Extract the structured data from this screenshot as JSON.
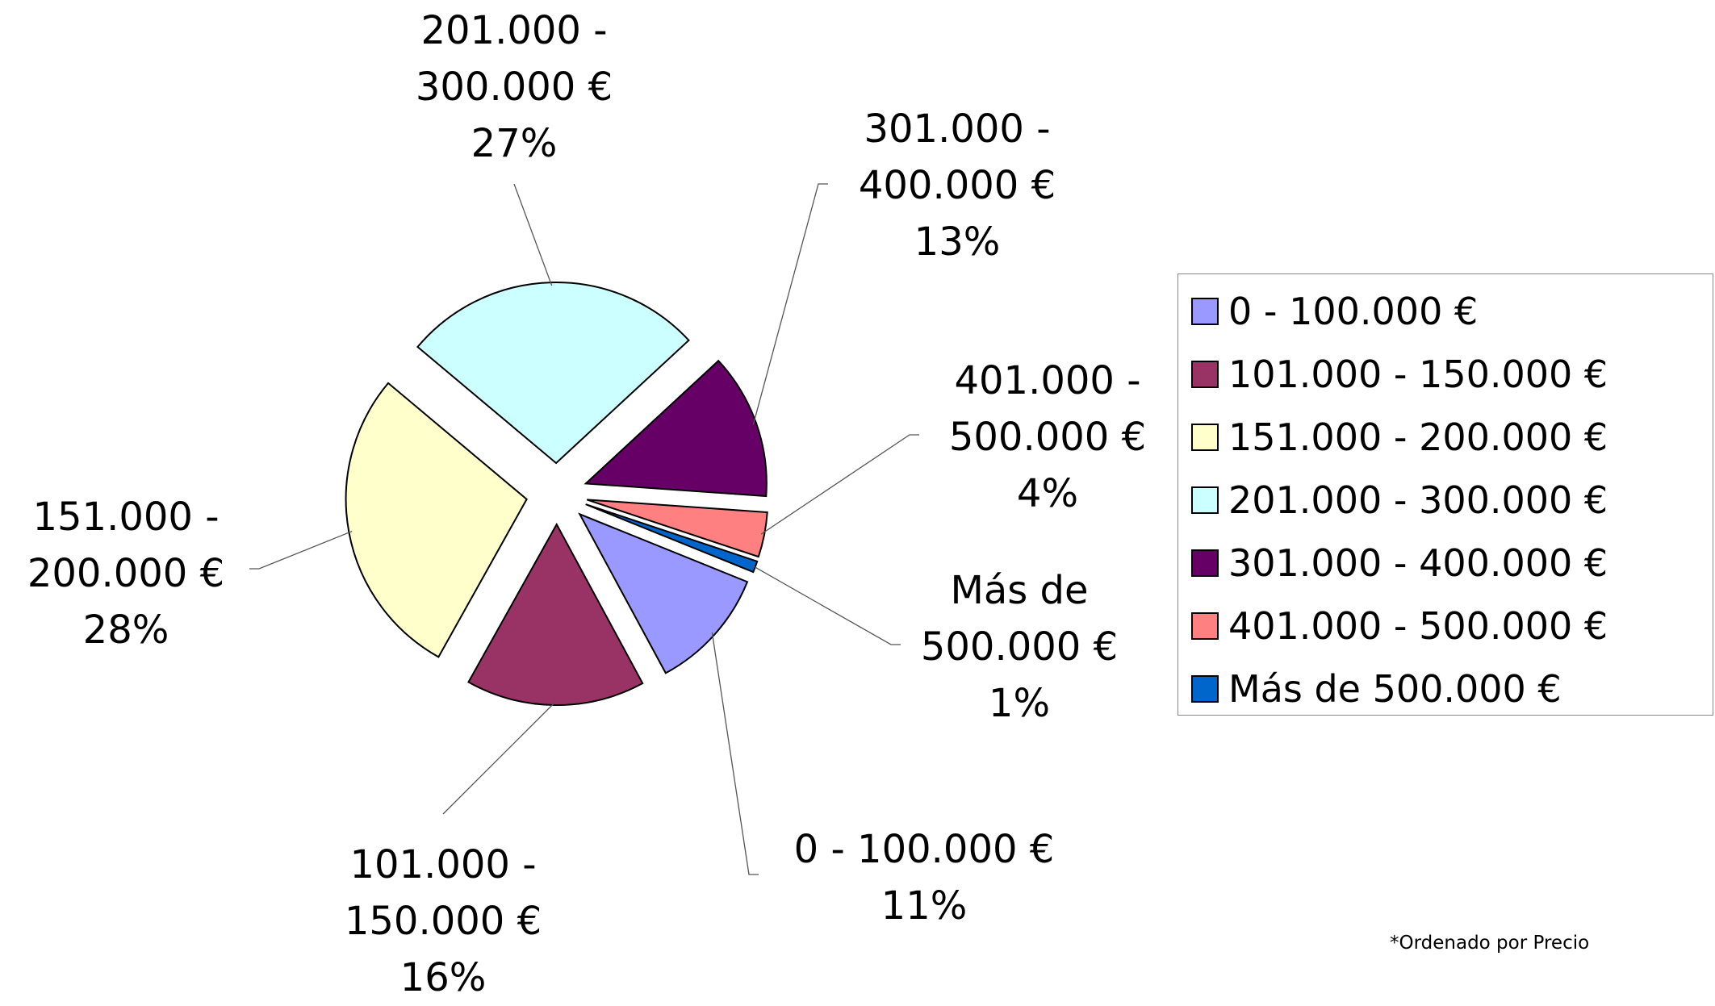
{
  "chart_data": {
    "type": "pie",
    "categories": [
      "0 - 100.000 €",
      "101.000 - 150.000 €",
      "151.000 - 200.000 €",
      "201.000 - 300.000 €",
      "301.000 - 400.000 €",
      "401.000 - 500.000 €",
      "Más de 500.000 €"
    ],
    "values": [
      11,
      16,
      28,
      27,
      13,
      4,
      1
    ],
    "value_labels": [
      "11%",
      "16%",
      "28%",
      "27%",
      "13%",
      "4%",
      "1%"
    ],
    "colors": [
      "#9999ff",
      "#993366",
      "#ffffcc",
      "#ccffff",
      "#660066",
      "#ff8080",
      "#0066cc"
    ],
    "legend": "right",
    "annotation": "*Ordenado por Precio"
  }
}
